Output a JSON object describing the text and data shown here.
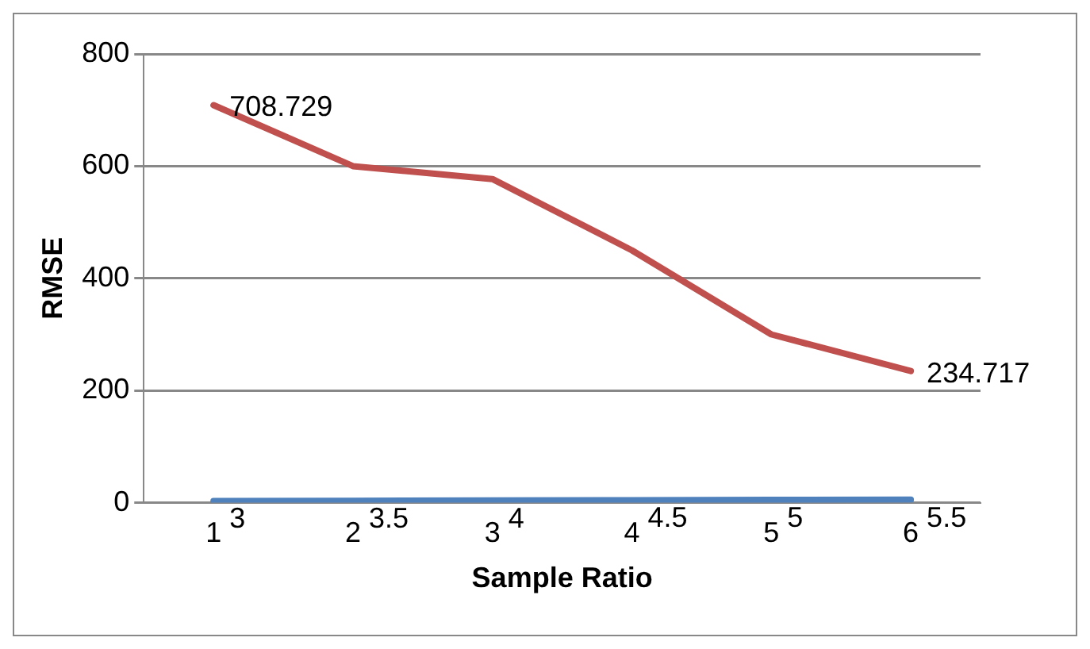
{
  "chart_data": {
    "type": "line",
    "xlabel": "Sample Ratio",
    "ylabel": "RMSE",
    "categories": [
      "1",
      "2",
      "3",
      "4",
      "5",
      "6"
    ],
    "series": [
      {
        "color": "#4f81bd",
        "values": [
          3,
          3.5,
          4,
          4.5,
          5,
          5.5
        ],
        "value_labels": [
          "3",
          "3.5",
          "4",
          "4.5",
          "5",
          "5.5"
        ]
      },
      {
        "color": "#c0504d",
        "values": [
          708.729,
          600,
          577,
          450,
          300,
          234.717
        ],
        "value_labels": [
          "708.729",
          null,
          null,
          null,
          null,
          "234.717"
        ]
      }
    ],
    "ylim": [
      0,
      800
    ],
    "yticks": [
      0,
      200,
      400,
      600,
      800
    ],
    "grid": "y",
    "legend": false,
    "marker": "none"
  }
}
